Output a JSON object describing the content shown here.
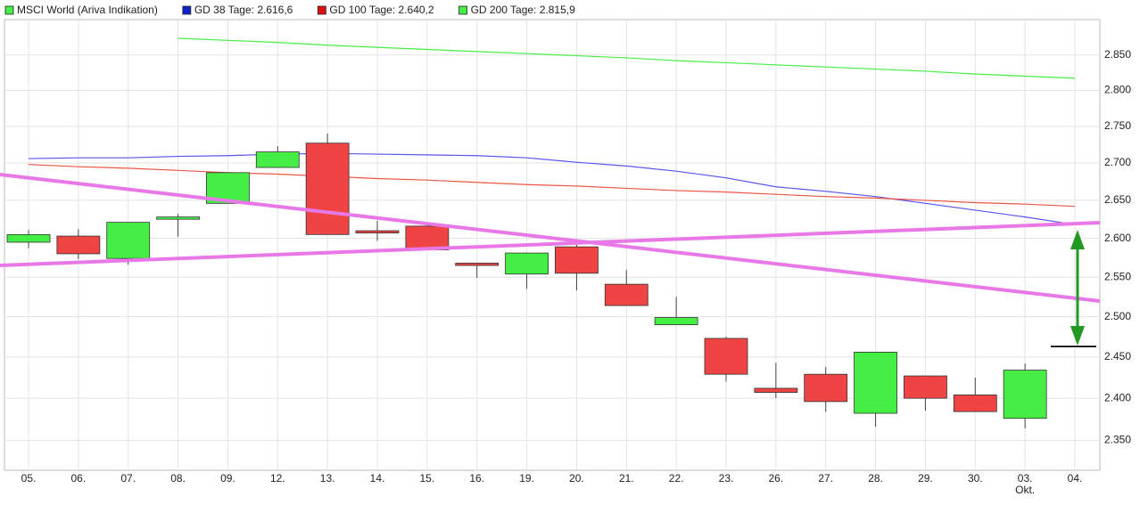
{
  "chart_data": {
    "type": "candlestick",
    "log_scale": true,
    "grid": true,
    "categories": [
      "05.",
      "06.",
      "07.",
      "08.",
      "09.",
      "12.",
      "13.",
      "14.",
      "15.",
      "16.",
      "19.",
      "20.",
      "21.",
      "22.",
      "23.",
      "26.",
      "27.",
      "28.",
      "29.",
      "30.",
      "03.",
      "04."
    ],
    "month_label": "Okt.",
    "candles": {
      "name": "MSCI World (Ariva Indikation)",
      "up_color": "#44ee44",
      "down_color": "#ee4444",
      "open": [
        2595,
        2603,
        2574,
        2625,
        2646,
        2694,
        2727,
        2610,
        2616,
        2568,
        2554,
        2589,
        2541,
        2490,
        2473,
        2412,
        2429,
        2382,
        2427,
        2404,
        2376,
        2463
      ],
      "high": [
        2611,
        2612,
        2621,
        2632,
        2687,
        2723,
        2740,
        2623,
        2621,
        2568,
        2581,
        2596,
        2559,
        2525,
        2475,
        2443,
        2438,
        2456,
        2427,
        2425,
        2442,
        2463
      ],
      "low": [
        2587,
        2573,
        2566,
        2602,
        2646,
        2694,
        2605,
        2597,
        2585,
        2549,
        2535,
        2533,
        2514,
        2490,
        2420,
        2400,
        2384,
        2366,
        2385,
        2384,
        2364,
        2463
      ],
      "close": [
        2605,
        2580,
        2621,
        2628,
        2687,
        2715,
        2605,
        2607,
        2585,
        2565,
        2581,
        2555,
        2514,
        2499,
        2429,
        2407,
        2396,
        2456,
        2400,
        2384,
        2434,
        2463
      ]
    },
    "series": [
      {
        "name": "GD 38 Tage: 2.616,6",
        "color": "#5555ee",
        "values": [
          2706,
          2707,
          2707,
          2709,
          2710,
          2712,
          2713,
          2712,
          2711,
          2710,
          2707,
          2701,
          2696,
          2689,
          2680,
          2668,
          2662,
          2655,
          2646,
          2637,
          2628,
          2618
        ]
      },
      {
        "name": "GD 100 Tage: 2.640,2",
        "color": "#ee5544",
        "values": [
          2698,
          2695,
          2693,
          2690,
          2687,
          2685,
          2682,
          2679,
          2677,
          2674,
          2671,
          2669,
          2666,
          2663,
          2661,
          2658,
          2655,
          2653,
          2650,
          2647,
          2645,
          2642
        ]
      },
      {
        "name": "GD 200 Tage: 2.815,9",
        "color": "#44ee44",
        "values": [
          null,
          null,
          null,
          2874,
          2871,
          2868,
          2864,
          2861,
          2858,
          2855,
          2852,
          2849,
          2846,
          2842,
          2839,
          2836,
          2833,
          2830,
          2827,
          2823,
          2820,
          2817
        ]
      }
    ],
    "ylim": [
      2315,
      2901
    ],
    "yticks": [
      {
        "value": 2350,
        "label": "2.350"
      },
      {
        "value": 2400,
        "label": "2.400"
      },
      {
        "value": 2450,
        "label": "2.450"
      },
      {
        "value": 2500,
        "label": "2.500"
      },
      {
        "value": 2550,
        "label": "2.550"
      },
      {
        "value": 2600,
        "label": "2.600"
      },
      {
        "value": 2650,
        "label": "2.650"
      },
      {
        "value": 2700,
        "label": "2.700"
      },
      {
        "value": 2750,
        "label": "2.750"
      },
      {
        "value": 2800,
        "label": "2.800"
      },
      {
        "value": 2850,
        "label": "2.850"
      }
    ]
  }
}
